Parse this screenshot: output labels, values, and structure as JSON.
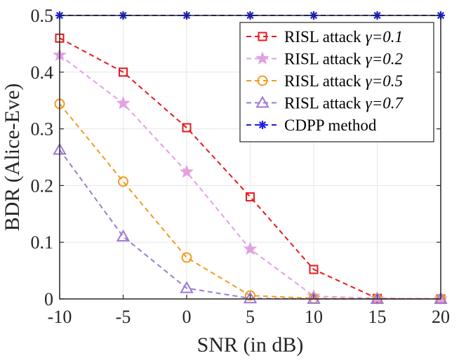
{
  "chart_data": {
    "type": "line",
    "title": "",
    "xlabel": "SNR (in dB)",
    "ylabel": "BDR (Alice-Eve)",
    "xlim": [
      -10,
      20
    ],
    "ylim": [
      0,
      0.5
    ],
    "grid": true,
    "legend_position": "top-right",
    "x": [
      -10,
      -5,
      0,
      5,
      10,
      15,
      20
    ],
    "x_tick_labels": [
      "-10",
      "-5",
      "0",
      "5",
      "10",
      "15",
      "20"
    ],
    "y_ticks": [
      0,
      0.1,
      0.2,
      0.3,
      0.4,
      0.5
    ],
    "y_tick_labels": [
      "0",
      "0.1",
      "0.2",
      "0.3",
      "0.4",
      "0.5"
    ],
    "series": [
      {
        "name": "RISL attack",
        "gamma": "γ=0.1",
        "color": "#e8191f",
        "marker": "square",
        "values": [
          0.46,
          0.4,
          0.302,
          0.18,
          0.052,
          0.001,
          0.0
        ]
      },
      {
        "name": "RISL attack",
        "gamma": "γ=0.2",
        "color": "#e3a0e3",
        "marker": "star",
        "values": [
          0.43,
          0.345,
          0.224,
          0.088,
          0.005,
          0.001,
          0.0
        ]
      },
      {
        "name": "RISL attack",
        "gamma": "γ=0.5",
        "color": "#f29b1d",
        "marker": "circle",
        "values": [
          0.344,
          0.207,
          0.073,
          0.006,
          0.001,
          0.0,
          0.0
        ]
      },
      {
        "name": "RISL attack",
        "gamma": "γ=0.7",
        "color": "#9c7ad6",
        "marker": "triangle",
        "values": [
          0.263,
          0.11,
          0.019,
          0.001,
          0.0,
          0.0,
          0.0
        ]
      },
      {
        "name": "CDPP method",
        "gamma": "",
        "color": "#1f1fe6",
        "marker": "asterisk",
        "values": [
          0.5,
          0.5,
          0.5,
          0.5,
          0.5,
          0.5,
          0.5
        ]
      }
    ]
  }
}
